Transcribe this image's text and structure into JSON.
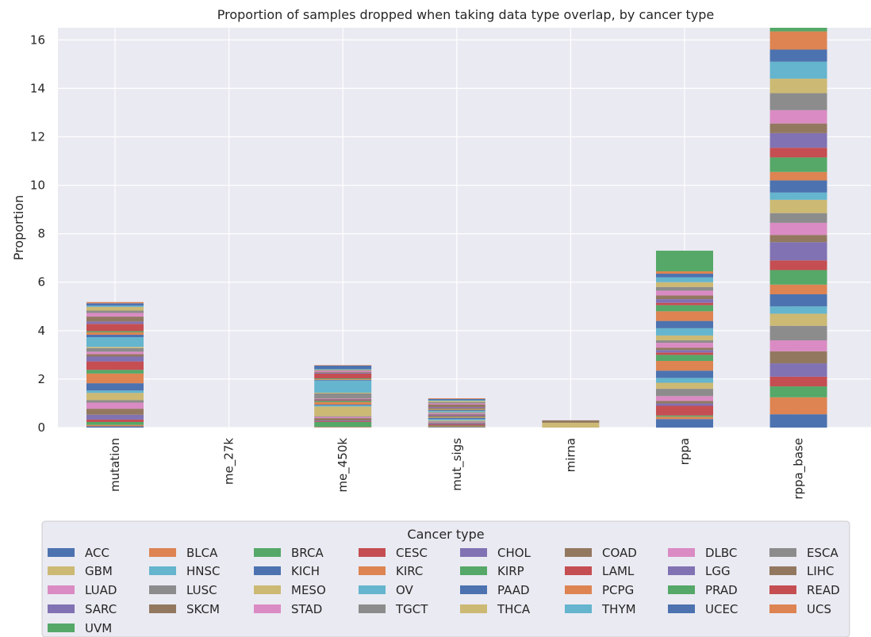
{
  "chart_data": {
    "type": "bar",
    "stacked": true,
    "title": "Proportion of samples dropped when taking data type overlap, by cancer type",
    "xlabel": "",
    "ylabel": "Proportion",
    "ylim": [
      0,
      16.5
    ],
    "yticks": [
      0,
      2,
      4,
      6,
      8,
      10,
      12,
      14,
      16
    ],
    "grid": true,
    "legend_title": "Cancer type",
    "legend_placement": "bottom",
    "categories": [
      "mutation",
      "me_27k",
      "me_450k",
      "mut_sigs",
      "mirna",
      "rppa",
      "rppa_base"
    ],
    "series": [
      {
        "name": "ACC",
        "color": "#4c72b0",
        "values": [
          0.05,
          0,
          0.01,
          0.02,
          0,
          0.35,
          0.55
        ]
      },
      {
        "name": "BLCA",
        "color": "#dd8452",
        "values": [
          0.06,
          0,
          0.02,
          0.03,
          0,
          0.1,
          0.7
        ]
      },
      {
        "name": "BRCA",
        "color": "#55a868",
        "values": [
          0.12,
          0,
          0.2,
          0.03,
          0,
          0.05,
          0.45
        ]
      },
      {
        "name": "CESC",
        "color": "#c44e52",
        "values": [
          0.1,
          0,
          0.03,
          0.05,
          0,
          0.4,
          0.4
        ]
      },
      {
        "name": "CHOL",
        "color": "#8172b3",
        "values": [
          0.2,
          0,
          0.03,
          0.04,
          0,
          0.1,
          0.55
        ]
      },
      {
        "name": "COAD",
        "color": "#937860",
        "values": [
          0.25,
          0,
          0.1,
          0.04,
          0,
          0.1,
          0.5
        ]
      },
      {
        "name": "DLBC",
        "color": "#da8bc3",
        "values": [
          0.25,
          0,
          0.05,
          0.03,
          0,
          0.2,
          0.45
        ]
      },
      {
        "name": "ESCA",
        "color": "#8c8c8c",
        "values": [
          0.1,
          0,
          0.03,
          0.03,
          0,
          0.3,
          0.6
        ]
      },
      {
        "name": "GBM",
        "color": "#ccb974",
        "values": [
          0.3,
          0,
          0.4,
          0.03,
          0.2,
          0.25,
          0.5
        ]
      },
      {
        "name": "HNSC",
        "color": "#64b5cd",
        "values": [
          0.1,
          0,
          0.05,
          0.05,
          0,
          0.2,
          0.3
        ]
      },
      {
        "name": "KICH",
        "color": "#4c72b0",
        "values": [
          0.3,
          0,
          0.03,
          0.05,
          0,
          0.3,
          0.5
        ]
      },
      {
        "name": "KIRC",
        "color": "#dd8452",
        "values": [
          0.4,
          0,
          0.1,
          0.03,
          0,
          0.4,
          0.4
        ]
      },
      {
        "name": "KIRP",
        "color": "#55a868",
        "values": [
          0.15,
          0,
          0.05,
          0.03,
          0,
          0.25,
          0.6
        ]
      },
      {
        "name": "LAML",
        "color": "#c44e52",
        "values": [
          0.35,
          0,
          0.03,
          0.03,
          0,
          0.1,
          0.4
        ]
      },
      {
        "name": "LGG",
        "color": "#8172b3",
        "values": [
          0.2,
          0,
          0.03,
          0.04,
          0,
          0.1,
          0.75
        ]
      },
      {
        "name": "LIHC",
        "color": "#937860",
        "values": [
          0.1,
          0,
          0.03,
          0.03,
          0,
          0.1,
          0.3
        ]
      },
      {
        "name": "LUAD",
        "color": "#da8bc3",
        "values": [
          0.1,
          0,
          0.02,
          0.03,
          0,
          0.2,
          0.5
        ]
      },
      {
        "name": "LUSC",
        "color": "#8c8c8c",
        "values": [
          0.15,
          0,
          0.2,
          0.03,
          0,
          0.1,
          0.4
        ]
      },
      {
        "name": "MESO",
        "color": "#ccb974",
        "values": [
          0.05,
          0,
          0.03,
          0.02,
          0,
          0.2,
          0.55
        ]
      },
      {
        "name": "OV",
        "color": "#64b5cd",
        "values": [
          0.4,
          0,
          0.5,
          0.05,
          0,
          0.3,
          0.3
        ]
      },
      {
        "name": "PAAD",
        "color": "#4c72b0",
        "values": [
          0.1,
          0,
          0.03,
          0.03,
          0,
          0.3,
          0.5
        ]
      },
      {
        "name": "PCPG",
        "color": "#dd8452",
        "values": [
          0.1,
          0,
          0.03,
          0.03,
          0,
          0.4,
          0.35
        ]
      },
      {
        "name": "PRAD",
        "color": "#55a868",
        "values": [
          0.05,
          0,
          0.03,
          0.03,
          0,
          0.25,
          0.6
        ]
      },
      {
        "name": "READ",
        "color": "#c44e52",
        "values": [
          0.3,
          0,
          0.2,
          0.03,
          0,
          0.1,
          0.4
        ]
      },
      {
        "name": "SARC",
        "color": "#8172b3",
        "values": [
          0.1,
          0,
          0.03,
          0.04,
          0,
          0.15,
          0.6
        ]
      },
      {
        "name": "SKCM",
        "color": "#937860",
        "values": [
          0.2,
          0,
          0.03,
          0.1,
          0.1,
          0.15,
          0.4
        ]
      },
      {
        "name": "STAD",
        "color": "#da8bc3",
        "values": [
          0.15,
          0,
          0.05,
          0.05,
          0,
          0.2,
          0.55
        ]
      },
      {
        "name": "TGCT",
        "color": "#8c8c8c",
        "values": [
          0.1,
          0,
          0.03,
          0.05,
          0,
          0.15,
          0.7
        ]
      },
      {
        "name": "THCA",
        "color": "#ccb974",
        "values": [
          0.15,
          0,
          0.02,
          0.05,
          0,
          0.2,
          0.6
        ]
      },
      {
        "name": "THYM",
        "color": "#64b5cd",
        "values": [
          0.05,
          0,
          0.02,
          0.03,
          0,
          0.2,
          0.7
        ]
      },
      {
        "name": "UCEC",
        "color": "#4c72b0",
        "values": [
          0.1,
          0,
          0.15,
          0.05,
          0,
          0.15,
          0.5
        ]
      },
      {
        "name": "UCS",
        "color": "#dd8452",
        "values": [
          0.05,
          0,
          0.02,
          0.03,
          0,
          0.1,
          0.75
        ]
      },
      {
        "name": "UVM",
        "color": "#55a868",
        "values": [
          0.0,
          0,
          0.0,
          0.0,
          0,
          0.85,
          0.15
        ]
      }
    ]
  }
}
